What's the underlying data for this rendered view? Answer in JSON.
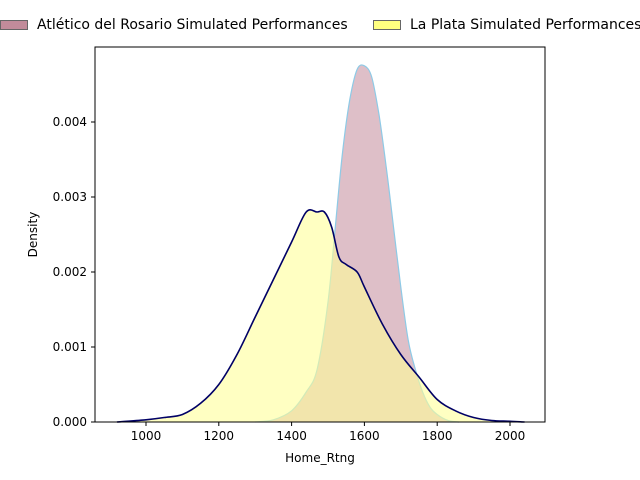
{
  "chart_data": {
    "type": "area",
    "title": "",
    "xlabel": "Home_Rtng",
    "ylabel": "Density",
    "xlim": [
      900,
      2100
    ],
    "ylim": [
      0,
      0.005
    ],
    "x_ticks": [
      1000,
      1200,
      1400,
      1600,
      1800,
      2000
    ],
    "x_tick_labels": [
      "1000",
      "1200",
      "1400",
      "1600",
      "1800",
      "2000"
    ],
    "y_ticks": [
      0.0,
      0.001,
      0.002,
      0.003,
      0.004
    ],
    "y_tick_labels": [
      "0.000",
      "0.001",
      "0.002",
      "0.003",
      "0.004"
    ],
    "grid": false,
    "legend_placement": "top-center",
    "series": [
      {
        "name": "Atlético del Rosario Simulated Performances",
        "fill_color": "#c28b9a",
        "fill_opacity": 0.55,
        "line_color": "#8ecae6",
        "swatch_color": "#c28b9a",
        "x": [
          1300,
          1350,
          1400,
          1440,
          1470,
          1500,
          1520,
          1540,
          1560,
          1580,
          1600,
          1620,
          1640,
          1660,
          1680,
          1700,
          1720,
          1740,
          1760,
          1780,
          1800,
          1830,
          1860
        ],
        "y": [
          0.0,
          3e-05,
          0.00015,
          0.0004,
          0.0007,
          0.0016,
          0.0026,
          0.0036,
          0.0043,
          0.0047,
          0.00475,
          0.0046,
          0.0041,
          0.0034,
          0.0026,
          0.0018,
          0.0011,
          0.0007,
          0.0004,
          0.0002,
          0.0001,
          2e-05,
          0.0
        ]
      },
      {
        "name": "La Plata Simulated Performances",
        "fill_color": "#ffff99",
        "fill_opacity": 0.6,
        "line_color": "#000066",
        "swatch_color": "#ffff80",
        "x": [
          920,
          1000,
          1050,
          1100,
          1150,
          1200,
          1250,
          1300,
          1350,
          1400,
          1440,
          1470,
          1490,
          1510,
          1530,
          1550,
          1580,
          1600,
          1650,
          1700,
          1750,
          1800,
          1850,
          1900,
          1950,
          2000,
          2040
        ],
        "y": [
          0.0,
          3e-05,
          6e-05,
          0.0001,
          0.00025,
          0.0005,
          0.0009,
          0.0014,
          0.0019,
          0.0024,
          0.0028,
          0.0028,
          0.0028,
          0.0026,
          0.0022,
          0.0021,
          0.002,
          0.0018,
          0.0013,
          0.0009,
          0.0006,
          0.0003,
          0.00015,
          6e-05,
          2e-05,
          1e-05,
          0.0
        ]
      }
    ]
  }
}
